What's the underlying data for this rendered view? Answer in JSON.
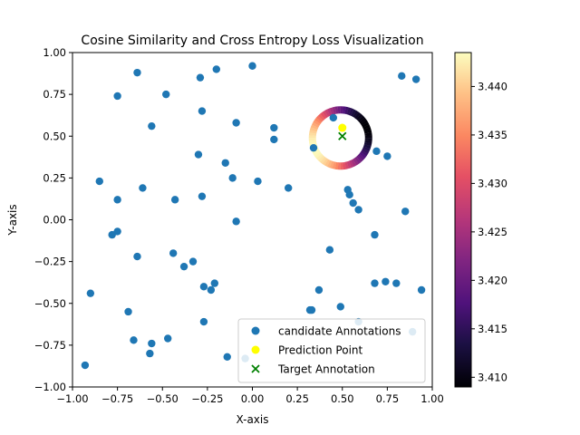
{
  "chart_data": {
    "type": "scatter",
    "title": "Cosine Similarity and Cross Entropy Loss Visualization",
    "xlabel": "X-axis",
    "ylabel": "Y-axis",
    "xlim": [
      -1.0,
      1.0
    ],
    "ylim": [
      -1.0,
      1.0
    ],
    "x_ticks": [
      -1.0,
      -0.75,
      -0.5,
      -0.25,
      0.0,
      0.25,
      0.5,
      0.75,
      1.0
    ],
    "y_ticks": [
      -1.0,
      -0.75,
      -0.5,
      -0.25,
      0.0,
      0.25,
      0.5,
      0.75,
      1.0
    ],
    "x_tick_labels": [
      "−1.00",
      "−0.75",
      "−0.50",
      "−0.25",
      "0.00",
      "0.25",
      "0.50",
      "0.75",
      "1.00"
    ],
    "y_tick_labels": [
      "−1.00",
      "−0.75",
      "−0.50",
      "−0.25",
      "0.00",
      "0.25",
      "0.50",
      "0.75",
      "1.00"
    ],
    "grid": false,
    "legend_position": "lower-right",
    "series": [
      {
        "name": "candidate Annotations",
        "marker": "circle",
        "color": "#1f77b4",
        "points": [
          [
            -0.64,
            0.88
          ],
          [
            -0.29,
            0.85
          ],
          [
            -0.2,
            0.9
          ],
          [
            0.0,
            0.92
          ],
          [
            0.83,
            0.86
          ],
          [
            0.91,
            0.84
          ],
          [
            -0.75,
            0.74
          ],
          [
            -0.48,
            0.75
          ],
          [
            -0.28,
            0.65
          ],
          [
            -0.56,
            0.56
          ],
          [
            -0.09,
            0.58
          ],
          [
            0.12,
            0.55
          ],
          [
            0.12,
            0.48
          ],
          [
            0.45,
            0.61
          ],
          [
            0.34,
            0.43
          ],
          [
            0.69,
            0.41
          ],
          [
            0.75,
            0.38
          ],
          [
            -0.3,
            0.39
          ],
          [
            -0.15,
            0.34
          ],
          [
            -0.85,
            0.23
          ],
          [
            -0.11,
            0.25
          ],
          [
            0.03,
            0.23
          ],
          [
            0.2,
            0.19
          ],
          [
            -0.61,
            0.19
          ],
          [
            -0.75,
            0.12
          ],
          [
            -0.43,
            0.12
          ],
          [
            -0.28,
            0.14
          ],
          [
            0.53,
            0.18
          ],
          [
            0.54,
            0.15
          ],
          [
            0.56,
            0.1
          ],
          [
            0.59,
            0.06
          ],
          [
            0.85,
            0.05
          ],
          [
            -0.09,
            -0.01
          ],
          [
            -0.75,
            -0.07
          ],
          [
            -0.78,
            -0.09
          ],
          [
            0.68,
            -0.09
          ],
          [
            0.43,
            -0.18
          ],
          [
            -0.44,
            -0.2
          ],
          [
            -0.64,
            -0.22
          ],
          [
            -0.33,
            -0.25
          ],
          [
            -0.38,
            -0.28
          ],
          [
            -0.21,
            -0.38
          ],
          [
            0.68,
            -0.38
          ],
          [
            0.74,
            -0.37
          ],
          [
            0.8,
            -0.38
          ],
          [
            -0.27,
            -0.4
          ],
          [
            -0.23,
            -0.42
          ],
          [
            0.37,
            -0.42
          ],
          [
            0.94,
            -0.42
          ],
          [
            -0.9,
            -0.44
          ],
          [
            0.49,
            -0.52
          ],
          [
            0.32,
            -0.54
          ],
          [
            0.33,
            -0.54
          ],
          [
            -0.69,
            -0.55
          ],
          [
            -0.27,
            -0.61
          ],
          [
            0.59,
            -0.61
          ],
          [
            -0.47,
            -0.71
          ],
          [
            -0.66,
            -0.72
          ],
          [
            -0.56,
            -0.74
          ],
          [
            -0.57,
            -0.8
          ],
          [
            -0.14,
            -0.82
          ],
          [
            -0.04,
            -0.83
          ],
          [
            -0.93,
            -0.87
          ],
          [
            0.89,
            -0.67
          ]
        ]
      },
      {
        "name": "Prediction Point",
        "marker": "circle",
        "color": "#ffff00",
        "points": [
          [
            0.5,
            0.55
          ]
        ]
      },
      {
        "name": "Target Annotation",
        "marker": "x",
        "color": "#008000",
        "points": [
          [
            0.5,
            0.5
          ]
        ]
      }
    ],
    "ring": {
      "center": [
        0.5,
        0.5
      ],
      "colormap": "magma"
    },
    "colorbar": {
      "colormap": "magma",
      "range": [
        3.409,
        3.4435
      ],
      "ticks": [
        3.41,
        3.415,
        3.42,
        3.425,
        3.43,
        3.435,
        3.44
      ],
      "tick_labels": [
        "3.410",
        "3.415",
        "3.420",
        "3.425",
        "3.430",
        "3.435",
        "3.440"
      ]
    }
  }
}
